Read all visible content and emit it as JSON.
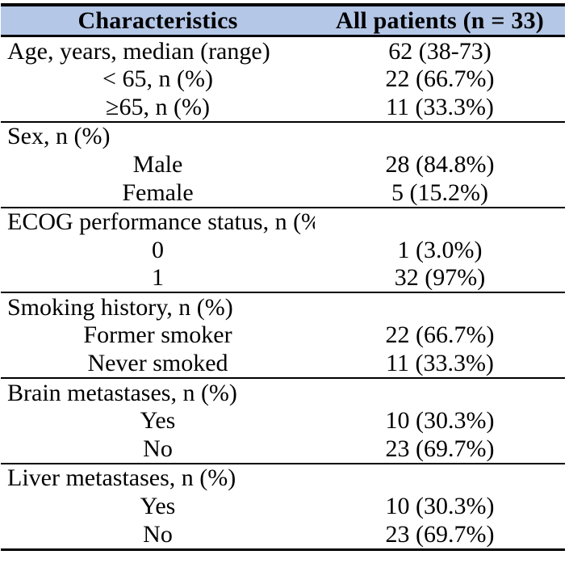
{
  "colors": {
    "header_bg": "#b4c7e7",
    "border": "#000000",
    "text": "#000000",
    "page_bg": "#ffffff"
  },
  "table": {
    "header": {
      "characteristics": "Characteristics",
      "all_patients": "All patients (n = 33)"
    },
    "sections": [
      {
        "name": "age",
        "rows": [
          {
            "label": "Age, years, median (range)",
            "value": "62 (38-73)"
          },
          {
            "label": "< 65, n (%)",
            "value": "22 (66.7%)"
          },
          {
            "label": "≥65, n (%)",
            "value": "11 (33.3%)"
          }
        ]
      },
      {
        "name": "sex",
        "rows": [
          {
            "label": "Sex, n (%)",
            "value": ""
          },
          {
            "label": "Male",
            "value": "28 (84.8%)"
          },
          {
            "label": "Female",
            "value": "5 (15.2%)"
          }
        ]
      },
      {
        "name": "ecog",
        "rows": [
          {
            "label": "ECOG performance status, n (%)",
            "value": ""
          },
          {
            "label": "0",
            "value": "1 (3.0%)"
          },
          {
            "label": "1",
            "value": "32 (97%)"
          }
        ]
      },
      {
        "name": "smoking",
        "rows": [
          {
            "label": "Smoking history, n (%)",
            "value": ""
          },
          {
            "label": "Former smoker",
            "value": "22 (66.7%)"
          },
          {
            "label": "Never smoked",
            "value": "11 (33.3%)"
          }
        ]
      },
      {
        "name": "brain-metastases",
        "rows": [
          {
            "label": "Brain metastases, n (%)",
            "value": ""
          },
          {
            "label": "Yes",
            "value": "10 (30.3%)"
          },
          {
            "label": "No",
            "value": "23 (69.7%)"
          }
        ]
      },
      {
        "name": "liver-metastases",
        "rows": [
          {
            "label": "Liver metastases, n (%)",
            "value": ""
          },
          {
            "label": "Yes",
            "value": "10 (30.3%)"
          },
          {
            "label": "No",
            "value": "23 (69.7%)"
          }
        ]
      }
    ]
  },
  "chart_data": {
    "type": "table",
    "title": "",
    "columns": [
      "Characteristics",
      "All patients (n = 33)"
    ],
    "rows": [
      [
        "Age, years, median (range)",
        "62 (38-73)"
      ],
      [
        "< 65, n (%)",
        "22 (66.7%)"
      ],
      [
        "≥65, n (%)",
        "11 (33.3%)"
      ],
      [
        "Sex, n (%)",
        ""
      ],
      [
        "Male",
        "28 (84.8%)"
      ],
      [
        "Female",
        "5 (15.2%)"
      ],
      [
        "ECOG performance status, n (%)",
        ""
      ],
      [
        "0",
        "1 (3.0%)"
      ],
      [
        "1",
        "32 (97%)"
      ],
      [
        "Smoking history, n (%)",
        ""
      ],
      [
        "Former smoker",
        "22 (66.7%)"
      ],
      [
        "Never smoked",
        "11 (33.3%)"
      ],
      [
        "Brain metastases, n (%)",
        ""
      ],
      [
        "Yes",
        "10 (30.3%)"
      ],
      [
        "No",
        "23 (69.7%)"
      ],
      [
        "Liver metastases, n (%)",
        ""
      ],
      [
        "Yes",
        "10 (30.3%)"
      ],
      [
        "No",
        "23 (69.7%)"
      ]
    ]
  }
}
